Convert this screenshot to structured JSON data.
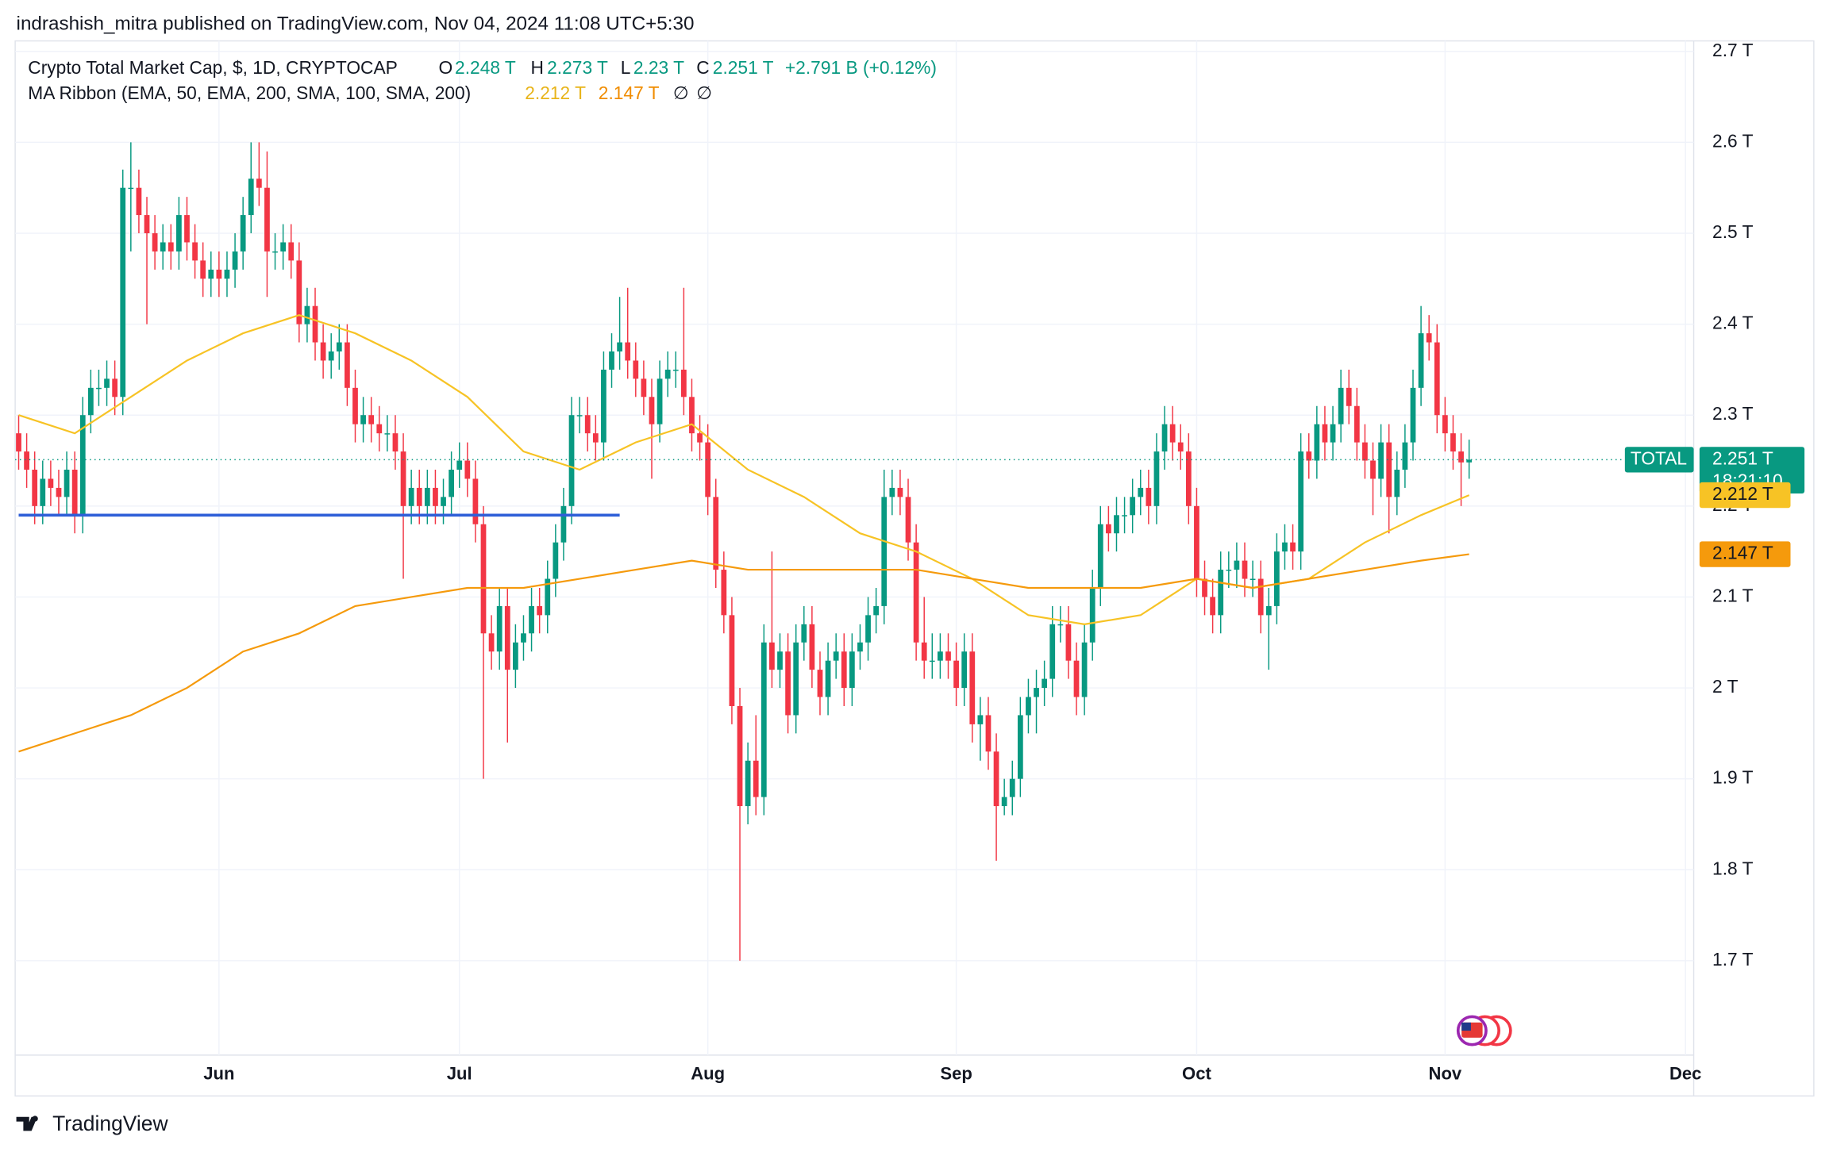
{
  "header": {
    "byline": "indrashish_mitra published on TradingView.com, Nov 04, 2024 11:08 UTC+5:30"
  },
  "legend": {
    "symbol": "Crypto Total Market Cap, $, 1D, CRYPTOCAP",
    "o_key": "O",
    "o_val": "2.248 T",
    "h_key": "H",
    "h_val": "2.273 T",
    "l_key": "L",
    "l_val": "2.23 T",
    "c_key": "C",
    "c_val": "2.251 T",
    "change": "+2.791 B (+0.12%)",
    "indicator": "MA Ribbon (EMA, 50, EMA, 200, SMA, 100, SMA, 200)",
    "ma1": "2.212 T",
    "ma2": "2.147 T",
    "ma3": "∅",
    "ma4": "∅"
  },
  "footer": {
    "brand": "TradingView"
  },
  "chart_data": {
    "type": "candlestick",
    "up_color": "#089981",
    "down_color": "#f23645",
    "ylim": [
      1.59,
      2.71
    ],
    "yticks": [
      {
        "value": 1.7,
        "label": "1.7 T"
      },
      {
        "value": 1.8,
        "label": "1.8 T"
      },
      {
        "value": 1.9,
        "label": "1.9 T"
      },
      {
        "value": 2,
        "label": "2 T"
      },
      {
        "value": 2.1,
        "label": "2.1 T"
      },
      {
        "value": 2.2,
        "label": "2.2 T"
      },
      {
        "value": 2.3,
        "label": "2.3 T"
      },
      {
        "value": 2.4,
        "label": "2.4 T"
      },
      {
        "value": 2.5,
        "label": "2.5 T"
      },
      {
        "value": 2.6,
        "label": "2.6 T"
      },
      {
        "value": 2.7,
        "label": "2.7 T"
      }
    ],
    "xticks": [
      {
        "value": 25,
        "label": "Jun"
      },
      {
        "value": 55,
        "label": "Jul"
      },
      {
        "value": 86,
        "label": "Aug"
      },
      {
        "value": 117,
        "label": "Sep"
      },
      {
        "value": 147,
        "label": "Oct"
      },
      {
        "value": 178,
        "label": "Nov"
      },
      {
        "value": 208,
        "label": "Dec"
      }
    ],
    "grid": true,
    "open": [
      2.28,
      2.26,
      2.24,
      2.2,
      2.23,
      2.22,
      2.21,
      2.24,
      2.19,
      2.3,
      2.33,
      2.33,
      2.34,
      2.32,
      2.55,
      2.55,
      2.52,
      2.5,
      2.48,
      2.49,
      2.48,
      2.52,
      2.49,
      2.47,
      2.45,
      2.46,
      2.45,
      2.46,
      2.48,
      2.52,
      2.56,
      2.55,
      2.48,
      2.48,
      2.49,
      2.47,
      2.4,
      2.42,
      2.38,
      2.36,
      2.37,
      2.38,
      2.33,
      2.29,
      2.3,
      2.29,
      2.28,
      2.28,
      2.26,
      2.2,
      2.22,
      2.2,
      2.22,
      2.2,
      2.21,
      2.24,
      2.25,
      2.23,
      2.18,
      2.06,
      2.04,
      2.09,
      2.02,
      2.05,
      2.06,
      2.09,
      2.08,
      2.12,
      2.16,
      2.2,
      2.3,
      2.3,
      2.28,
      2.27,
      2.35,
      2.37,
      2.38,
      2.36,
      2.34,
      2.32,
      2.29,
      2.34,
      2.35,
      2.35,
      2.32,
      2.28,
      2.27,
      2.21,
      2.13,
      2.08,
      1.98,
      1.87,
      1.92,
      1.88,
      2.05,
      2.02,
      2.04,
      1.97,
      2.05,
      2.07,
      2.02,
      1.99,
      2.03,
      2.04,
      2.0,
      2.04,
      2.05,
      2.08,
      2.09,
      2.21,
      2.22,
      2.21,
      2.16,
      2.05,
      2.03,
      2.03,
      2.04,
      2.03,
      2.0,
      2.04,
      1.96,
      1.97,
      1.93,
      1.87,
      1.88,
      1.9,
      1.97,
      1.99,
      2.0,
      2.01,
      2.07,
      2.07,
      2.03,
      1.99,
      2.05,
      2.11,
      2.18,
      2.17,
      2.19,
      2.19,
      2.21,
      2.22,
      2.2,
      2.26,
      2.29,
      2.27,
      2.26,
      2.2,
      2.12,
      2.1,
      2.08,
      2.13,
      2.13,
      2.14,
      2.12,
      2.12,
      2.08,
      2.09,
      2.15,
      2.16,
      2.15,
      2.26,
      2.25,
      2.29,
      2.27,
      2.29,
      2.33,
      2.31,
      2.27,
      2.25,
      2.23,
      2.27,
      2.21,
      2.24,
      2.27,
      2.33,
      2.39,
      2.38,
      2.3,
      2.28,
      2.26,
      2.248
    ],
    "high": [
      2.3,
      2.28,
      2.26,
      2.25,
      2.25,
      2.24,
      2.26,
      2.26,
      2.32,
      2.35,
      2.35,
      2.36,
      2.36,
      2.57,
      2.6,
      2.57,
      2.54,
      2.52,
      2.51,
      2.51,
      2.54,
      2.54,
      2.51,
      2.49,
      2.48,
      2.48,
      2.48,
      2.5,
      2.54,
      2.6,
      2.6,
      2.59,
      2.5,
      2.51,
      2.51,
      2.49,
      2.44,
      2.44,
      2.4,
      2.39,
      2.4,
      2.4,
      2.35,
      2.32,
      2.32,
      2.31,
      2.3,
      2.3,
      2.28,
      2.24,
      2.24,
      2.24,
      2.24,
      2.23,
      2.26,
      2.27,
      2.27,
      2.25,
      2.2,
      2.08,
      2.11,
      2.11,
      2.07,
      2.08,
      2.11,
      2.11,
      2.14,
      2.18,
      2.22,
      2.32,
      2.32,
      2.32,
      2.3,
      2.37,
      2.39,
      2.43,
      2.44,
      2.38,
      2.36,
      2.34,
      2.36,
      2.37,
      2.37,
      2.44,
      2.34,
      2.3,
      2.29,
      2.23,
      2.15,
      2.1,
      2.0,
      1.94,
      1.97,
      2.07,
      2.15,
      2.06,
      2.06,
      2.07,
      2.09,
      2.09,
      2.04,
      2.05,
      2.06,
      2.06,
      2.06,
      2.07,
      2.1,
      2.11,
      2.24,
      2.24,
      2.24,
      2.23,
      2.18,
      2.1,
      2.06,
      2.06,
      2.06,
      2.05,
      2.06,
      2.06,
      1.99,
      1.99,
      1.95,
      1.9,
      1.92,
      1.99,
      2.01,
      2.02,
      2.03,
      2.09,
      2.09,
      2.09,
      2.05,
      2.07,
      2.13,
      2.2,
      2.2,
      2.21,
      2.21,
      2.23,
      2.24,
      2.24,
      2.28,
      2.31,
      2.31,
      2.29,
      2.28,
      2.22,
      2.14,
      2.12,
      2.15,
      2.15,
      2.16,
      2.16,
      2.14,
      2.14,
      2.11,
      2.17,
      2.18,
      2.18,
      2.28,
      2.28,
      2.31,
      2.31,
      2.31,
      2.35,
      2.35,
      2.33,
      2.29,
      2.27,
      2.29,
      2.29,
      2.26,
      2.29,
      2.35,
      2.42,
      2.41,
      2.4,
      2.32,
      2.3,
      2.28,
      2.273
    ],
    "low": [
      2.24,
      2.22,
      2.18,
      2.18,
      2.2,
      2.19,
      2.19,
      2.17,
      2.17,
      2.28,
      2.31,
      2.31,
      2.3,
      2.3,
      2.48,
      2.5,
      2.4,
      2.46,
      2.46,
      2.46,
      2.46,
      2.47,
      2.45,
      2.43,
      2.43,
      2.43,
      2.43,
      2.44,
      2.46,
      2.5,
      2.53,
      2.43,
      2.46,
      2.46,
      2.45,
      2.38,
      2.38,
      2.36,
      2.34,
      2.34,
      2.35,
      2.31,
      2.27,
      2.27,
      2.27,
      2.26,
      2.26,
      2.24,
      2.12,
      2.18,
      2.18,
      2.18,
      2.18,
      2.18,
      2.19,
      2.22,
      2.21,
      2.16,
      1.9,
      2.02,
      2.02,
      1.94,
      2.0,
      2.03,
      2.04,
      2.06,
      2.06,
      2.1,
      2.14,
      2.18,
      2.28,
      2.26,
      2.25,
      2.25,
      2.33,
      2.35,
      2.34,
      2.32,
      2.3,
      2.23,
      2.27,
      2.32,
      2.33,
      2.3,
      2.26,
      2.25,
      2.19,
      2.11,
      2.06,
      1.96,
      1.7,
      1.85,
      1.86,
      1.86,
      2.0,
      2.0,
      1.95,
      1.95,
      2.03,
      2.0,
      1.97,
      1.97,
      2.01,
      1.98,
      1.98,
      2.02,
      2.03,
      2.06,
      2.07,
      2.19,
      2.19,
      2.14,
      2.03,
      2.01,
      2.01,
      2.01,
      2.01,
      1.98,
      1.98,
      1.94,
      1.92,
      1.91,
      1.81,
      1.86,
      1.86,
      1.88,
      1.95,
      1.95,
      1.98,
      1.99,
      2.05,
      2.01,
      1.97,
      1.97,
      2.03,
      2.09,
      2.15,
      2.15,
      2.17,
      2.17,
      2.19,
      2.18,
      2.18,
      2.24,
      2.25,
      2.24,
      2.18,
      2.1,
      2.08,
      2.06,
      2.06,
      2.11,
      2.11,
      2.1,
      2.1,
      2.06,
      2.02,
      2.07,
      2.13,
      2.13,
      2.13,
      2.23,
      2.23,
      2.25,
      2.25,
      2.27,
      2.29,
      2.25,
      2.23,
      2.19,
      2.21,
      2.17,
      2.19,
      2.22,
      2.25,
      2.31,
      2.36,
      2.28,
      2.26,
      2.24,
      2.2,
      2.23
    ],
    "close": [
      2.26,
      2.24,
      2.2,
      2.23,
      2.22,
      2.21,
      2.24,
      2.19,
      2.3,
      2.33,
      2.33,
      2.34,
      2.32,
      2.55,
      2.55,
      2.52,
      2.5,
      2.48,
      2.49,
      2.48,
      2.52,
      2.49,
      2.47,
      2.45,
      2.46,
      2.45,
      2.46,
      2.48,
      2.52,
      2.56,
      2.55,
      2.48,
      2.48,
      2.49,
      2.47,
      2.4,
      2.42,
      2.38,
      2.36,
      2.37,
      2.38,
      2.33,
      2.29,
      2.3,
      2.29,
      2.28,
      2.28,
      2.26,
      2.2,
      2.22,
      2.2,
      2.22,
      2.2,
      2.21,
      2.24,
      2.25,
      2.23,
      2.18,
      2.06,
      2.04,
      2.09,
      2.02,
      2.05,
      2.06,
      2.09,
      2.08,
      2.12,
      2.16,
      2.2,
      2.3,
      2.3,
      2.28,
      2.27,
      2.35,
      2.37,
      2.38,
      2.36,
      2.34,
      2.32,
      2.29,
      2.34,
      2.35,
      2.35,
      2.32,
      2.28,
      2.27,
      2.21,
      2.13,
      2.08,
      1.98,
      1.87,
      1.92,
      1.88,
      2.05,
      2.02,
      2.04,
      1.97,
      2.05,
      2.07,
      2.02,
      1.99,
      2.03,
      2.04,
      2.0,
      2.04,
      2.05,
      2.08,
      2.09,
      2.21,
      2.22,
      2.21,
      2.16,
      2.05,
      2.03,
      2.03,
      2.04,
      2.03,
      2.0,
      2.04,
      1.96,
      1.97,
      1.93,
      1.87,
      1.88,
      1.9,
      1.97,
      1.99,
      2.0,
      2.01,
      2.07,
      2.07,
      2.03,
      1.99,
      2.05,
      2.11,
      2.18,
      2.17,
      2.19,
      2.19,
      2.21,
      2.22,
      2.2,
      2.26,
      2.29,
      2.27,
      2.26,
      2.2,
      2.12,
      2.1,
      2.08,
      2.13,
      2.13,
      2.14,
      2.12,
      2.12,
      2.08,
      2.09,
      2.15,
      2.16,
      2.15,
      2.26,
      2.25,
      2.29,
      2.27,
      2.29,
      2.33,
      2.31,
      2.27,
      2.25,
      2.23,
      2.27,
      2.21,
      2.24,
      2.27,
      2.33,
      2.39,
      2.38,
      2.3,
      2.28,
      2.26,
      2.248,
      2.251
    ],
    "overlays": [
      {
        "color": "#f7c325",
        "x": [
          0,
          7,
          14,
          21,
          28,
          35,
          42,
          49,
          56,
          63,
          70,
          77,
          84,
          91,
          98,
          105,
          112,
          119,
          126,
          133,
          140,
          147,
          154,
          161,
          168,
          175,
          181
        ],
        "values": [
          2.3,
          2.28,
          2.32,
          2.36,
          2.39,
          2.41,
          2.39,
          2.36,
          2.32,
          2.26,
          2.24,
          2.27,
          2.29,
          2.24,
          2.21,
          2.17,
          2.15,
          2.12,
          2.08,
          2.07,
          2.08,
          2.12,
          2.11,
          2.12,
          2.16,
          2.19,
          2.212
        ]
      },
      {
        "color": "#f59a0c",
        "x": [
          0,
          7,
          14,
          21,
          28,
          35,
          42,
          49,
          56,
          63,
          70,
          77,
          84,
          91,
          98,
          105,
          112,
          119,
          126,
          133,
          140,
          147,
          154,
          161,
          168,
          175,
          181
        ],
        "values": [
          1.93,
          1.95,
          1.97,
          2.0,
          2.04,
          2.06,
          2.09,
          2.1,
          2.11,
          2.11,
          2.12,
          2.13,
          2.14,
          2.13,
          2.13,
          2.13,
          2.13,
          2.12,
          2.11,
          2.11,
          2.11,
          2.12,
          2.11,
          2.12,
          2.13,
          2.14,
          2.147
        ]
      },
      {
        "color": "#2f5fd8",
        "x": [
          0,
          75
        ],
        "values": [
          2.19,
          2.19
        ]
      }
    ],
    "price_tags": [
      {
        "name": "TOTAL",
        "label": "2.251 T",
        "countdown": "18:21:10"
      },
      {
        "label": "2.212 T"
      },
      {
        "label": "2.147 T"
      }
    ]
  }
}
